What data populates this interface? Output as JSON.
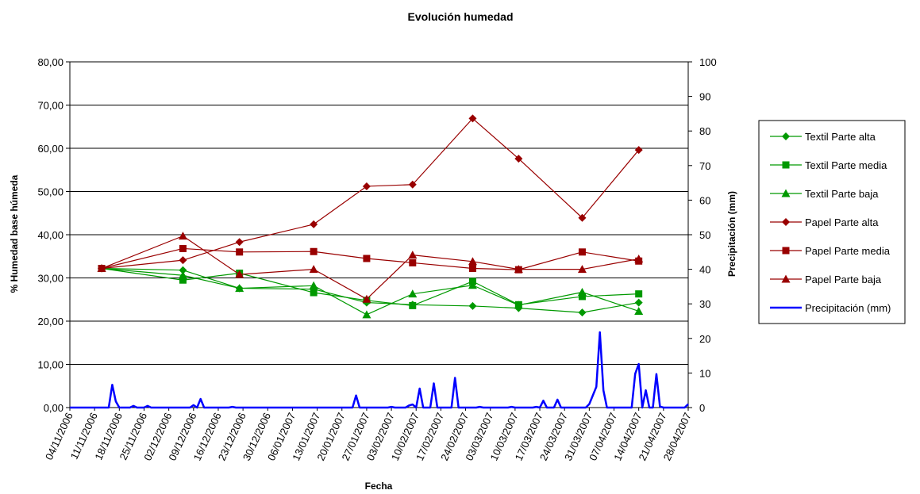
{
  "chart_data": {
    "type": "line",
    "title": "Evolución humedad",
    "xlabel": "Fecha",
    "ylabel": "% Humedad base húmeda",
    "ylabel_right": "Precipitación (mm)",
    "ylim": [
      0,
      80
    ],
    "ylim_right": [
      0,
      100
    ],
    "grid": true,
    "legend_position": "right",
    "yticks": [
      "0,00",
      "10,00",
      "20,00",
      "30,00",
      "40,00",
      "50,00",
      "60,00",
      "70,00",
      "80,00"
    ],
    "yticks_right": [
      "0",
      "10",
      "20",
      "30",
      "40",
      "50",
      "60",
      "70",
      "80",
      "90",
      "100"
    ],
    "x_range": [
      "2006-11-04",
      "2007-04-28"
    ],
    "xticks": [
      "04/11/2006",
      "11/11/2006",
      "18/11/2006",
      "25/11/2006",
      "02/12/2006",
      "09/12/2006",
      "16/12/2006",
      "23/12/2006",
      "30/12/2006",
      "06/01/2007",
      "13/01/2007",
      "20/01/2007",
      "27/01/2007",
      "03/02/2007",
      "10/02/2007",
      "17/02/2007",
      "24/02/2007",
      "03/03/2007",
      "10/03/2007",
      "17/03/2007",
      "24/03/2007",
      "31/03/2007",
      "07/04/2007",
      "14/04/2007",
      "21/04/2007",
      "28/04/2007"
    ],
    "series": [
      {
        "name": "Textil Parte alta",
        "color": "#009900",
        "marker": "diamond",
        "axis": "left",
        "points": [
          [
            "2006-11-13",
            32.2
          ],
          [
            "2006-12-06",
            31.8
          ],
          [
            "2006-12-22",
            27.6
          ],
          [
            "2007-01-12",
            27.4
          ],
          [
            "2007-01-27",
            24.3
          ],
          [
            "2007-02-09",
            23.8
          ],
          [
            "2007-02-26",
            23.5
          ],
          [
            "2007-03-11",
            23.0
          ],
          [
            "2007-03-29",
            22.0
          ],
          [
            "2007-04-14",
            24.3
          ]
        ]
      },
      {
        "name": "Textil Parte media",
        "color": "#009900",
        "marker": "square",
        "axis": "left",
        "points": [
          [
            "2006-11-13",
            32.2
          ],
          [
            "2006-12-06",
            29.5
          ],
          [
            "2006-12-22",
            31.1
          ],
          [
            "2007-01-12",
            26.6
          ],
          [
            "2007-01-27",
            24.8
          ],
          [
            "2007-02-09",
            23.6
          ],
          [
            "2007-02-26",
            29.2
          ],
          [
            "2007-03-11",
            23.8
          ],
          [
            "2007-03-29",
            25.7
          ],
          [
            "2007-04-14",
            26.3
          ]
        ]
      },
      {
        "name": "Textil Parte baja",
        "color": "#009900",
        "marker": "triangle",
        "axis": "left",
        "points": [
          [
            "2006-11-13",
            32.2
          ],
          [
            "2006-12-06",
            30.6
          ],
          [
            "2006-12-22",
            27.6
          ],
          [
            "2007-01-12",
            28.2
          ],
          [
            "2007-01-27",
            21.5
          ],
          [
            "2007-02-09",
            26.3
          ],
          [
            "2007-02-26",
            28.3
          ],
          [
            "2007-03-11",
            23.7
          ],
          [
            "2007-03-29",
            26.7
          ],
          [
            "2007-04-14",
            22.3
          ]
        ]
      },
      {
        "name": "Papel Parte alta",
        "color": "#990000",
        "marker": "diamond",
        "axis": "left",
        "points": [
          [
            "2006-11-13",
            32.2
          ],
          [
            "2006-12-06",
            34.1
          ],
          [
            "2006-12-22",
            38.3
          ],
          [
            "2007-01-12",
            42.4
          ],
          [
            "2007-01-27",
            51.2
          ],
          [
            "2007-02-09",
            51.6
          ],
          [
            "2007-02-26",
            66.9
          ],
          [
            "2007-03-11",
            57.6
          ],
          [
            "2007-03-29",
            43.9
          ],
          [
            "2007-04-14",
            59.6
          ]
        ]
      },
      {
        "name": "Papel Parte media",
        "color": "#990000",
        "marker": "square",
        "axis": "left",
        "points": [
          [
            "2006-11-13",
            32.2
          ],
          [
            "2006-12-06",
            36.8
          ],
          [
            "2006-12-22",
            36.0
          ],
          [
            "2007-01-12",
            36.1
          ],
          [
            "2007-01-27",
            34.5
          ],
          [
            "2007-02-09",
            33.5
          ],
          [
            "2007-02-26",
            32.2
          ],
          [
            "2007-03-11",
            31.9
          ],
          [
            "2007-03-29",
            36.0
          ],
          [
            "2007-04-14",
            33.9
          ]
        ]
      },
      {
        "name": "Papel Parte baja",
        "color": "#990000",
        "marker": "triangle",
        "axis": "left",
        "points": [
          [
            "2006-11-13",
            32.2
          ],
          [
            "2006-12-06",
            39.7
          ],
          [
            "2006-12-22",
            30.8
          ],
          [
            "2007-01-12",
            32.0
          ],
          [
            "2007-01-27",
            25.1
          ],
          [
            "2007-02-09",
            35.3
          ],
          [
            "2007-02-26",
            33.8
          ],
          [
            "2007-03-11",
            32.0
          ],
          [
            "2007-03-29",
            32.0
          ],
          [
            "2007-04-14",
            34.4
          ]
        ]
      },
      {
        "name": "Precipitación (mm)",
        "color": "#0000ff",
        "marker": "none",
        "axis": "right",
        "points": [
          [
            "2006-11-04",
            0
          ],
          [
            "2006-11-15",
            0
          ],
          [
            "2006-11-16",
            6.6
          ],
          [
            "2006-11-17",
            1.8
          ],
          [
            "2006-11-18",
            0
          ],
          [
            "2006-11-21",
            0
          ],
          [
            "2006-11-22",
            0.5
          ],
          [
            "2006-11-23",
            0
          ],
          [
            "2006-11-25",
            0
          ],
          [
            "2006-11-26",
            0.5
          ],
          [
            "2006-11-27",
            0
          ],
          [
            "2006-12-08",
            0
          ],
          [
            "2006-12-09",
            0.7
          ],
          [
            "2006-12-10",
            0
          ],
          [
            "2006-12-11",
            2.5
          ],
          [
            "2006-12-12",
            0
          ],
          [
            "2006-12-19",
            0
          ],
          [
            "2006-12-20",
            0.2
          ],
          [
            "2006-12-21",
            0
          ],
          [
            "2007-01-23",
            0
          ],
          [
            "2007-01-24",
            3.5
          ],
          [
            "2007-01-25",
            0
          ],
          [
            "2007-02-02",
            0
          ],
          [
            "2007-02-03",
            0.2
          ],
          [
            "2007-02-04",
            0
          ],
          [
            "2007-02-07",
            0
          ],
          [
            "2007-02-08",
            0.6
          ],
          [
            "2007-02-09",
            0.9
          ],
          [
            "2007-02-10",
            0
          ],
          [
            "2007-02-11",
            5.5
          ],
          [
            "2007-02-12",
            0
          ],
          [
            "2007-02-14",
            0
          ],
          [
            "2007-02-15",
            7.0
          ],
          [
            "2007-02-16",
            0
          ],
          [
            "2007-02-20",
            0
          ],
          [
            "2007-02-21",
            8.6
          ],
          [
            "2007-02-22",
            0
          ],
          [
            "2007-02-27",
            0
          ],
          [
            "2007-02-28",
            0.2
          ],
          [
            "2007-03-01",
            0
          ],
          [
            "2007-03-08",
            0
          ],
          [
            "2007-03-09",
            0.2
          ],
          [
            "2007-03-10",
            0
          ],
          [
            "2007-03-15",
            0
          ],
          [
            "2007-03-16",
            0.2
          ],
          [
            "2007-03-17",
            0
          ],
          [
            "2007-03-18",
            2.0
          ],
          [
            "2007-03-19",
            0
          ],
          [
            "2007-03-21",
            0
          ],
          [
            "2007-03-22",
            2.3
          ],
          [
            "2007-03-23",
            0
          ],
          [
            "2007-03-30",
            0
          ],
          [
            "2007-03-31",
            1.0
          ],
          [
            "2007-04-01",
            3.5
          ],
          [
            "2007-04-02",
            6.0
          ],
          [
            "2007-04-03",
            21.8
          ],
          [
            "2007-04-04",
            5.0
          ],
          [
            "2007-04-05",
            0
          ],
          [
            "2007-04-12",
            0
          ],
          [
            "2007-04-13",
            9.8
          ],
          [
            "2007-04-14",
            12.6
          ],
          [
            "2007-04-15",
            0
          ],
          [
            "2007-04-16",
            5.0
          ],
          [
            "2007-04-17",
            0
          ],
          [
            "2007-04-18",
            0
          ],
          [
            "2007-04-19",
            9.7
          ],
          [
            "2007-04-20",
            0.3
          ],
          [
            "2007-04-21",
            0
          ],
          [
            "2007-04-27",
            0
          ],
          [
            "2007-04-28",
            1.0
          ]
        ]
      }
    ]
  }
}
